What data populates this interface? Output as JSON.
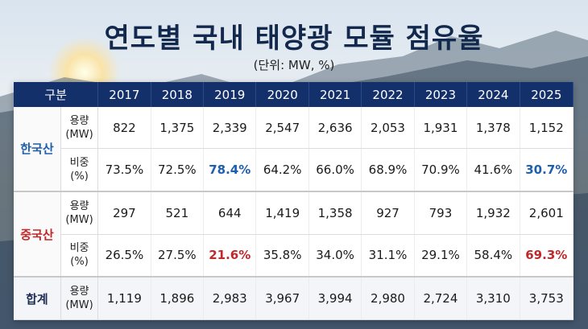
{
  "title": "연도별 국내 태양광 모듈 점유율",
  "unit": "(단위: MW, %)",
  "table": {
    "header_label": "구분",
    "years": [
      "2017",
      "2018",
      "2019",
      "2020",
      "2021",
      "2022",
      "2023",
      "2024",
      "2025"
    ],
    "groups": {
      "korea": {
        "name": "한국산",
        "capacity_label": "용량\n(MW)",
        "share_label": "비중\n(%)",
        "capacity": [
          "822",
          "1,375",
          "2,339",
          "2,547",
          "2,636",
          "2,053",
          "1,931",
          "1,378",
          "1,152"
        ],
        "share": [
          "73.5%",
          "72.5%",
          "78.4%",
          "64.2%",
          "66.0%",
          "68.9%",
          "70.9%",
          "41.6%",
          "30.7%"
        ]
      },
      "china": {
        "name": "중국산",
        "capacity_label": "용량\n(MW)",
        "share_label": "비중\n(%)",
        "capacity": [
          "297",
          "521",
          "644",
          "1,419",
          "1,358",
          "927",
          "793",
          "1,932",
          "2,601"
        ],
        "share": [
          "26.5%",
          "27.5%",
          "21.6%",
          "35.8%",
          "34.0%",
          "31.1%",
          "29.1%",
          "58.4%",
          "69.3%"
        ]
      },
      "total": {
        "name": "합계",
        "capacity_label": "용량\n(MW)",
        "capacity": [
          "1,119",
          "1,896",
          "2,983",
          "3,967",
          "3,994",
          "2,980",
          "2,724",
          "3,310",
          "3,753"
        ]
      }
    },
    "highlight_colors": {
      "korea": "#1e5fae",
      "china": "#c0282a"
    }
  }
}
